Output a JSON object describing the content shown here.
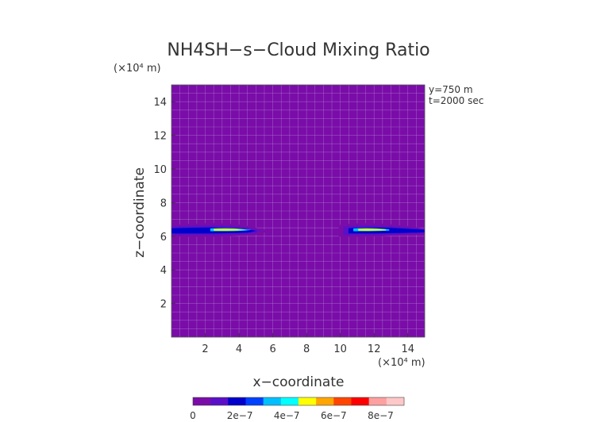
{
  "chart_data": {
    "type": "heatmap",
    "title": "NH4SH−s−Cloud Mixing Ratio",
    "xlabel": "x−coordinate",
    "ylabel": "z−coordinate",
    "x_unit": "(×10⁴ m)",
    "y_unit": "(×10⁴ m)",
    "xlim": [
      0,
      15
    ],
    "ylim": [
      0,
      15
    ],
    "x_ticks": [
      2,
      4,
      6,
      8,
      10,
      12,
      14
    ],
    "y_ticks": [
      2,
      4,
      6,
      8,
      10,
      12,
      14
    ],
    "annotations": [
      "y=750 m",
      "t=2000 sec"
    ],
    "grid": true,
    "background_color": "#7a0ca8",
    "colorbar": {
      "ticks": [
        0,
        2e-07,
        4e-07,
        6e-07,
        8e-07
      ],
      "tick_labels": [
        "0",
        "2e−7",
        "4e−7",
        "6e−7",
        "8e−7"
      ],
      "range": [
        0,
        9e-07
      ],
      "colors": [
        "#7a0ca8",
        "#5a10c8",
        "#0000cc",
        "#0040ff",
        "#00bfff",
        "#00ffff",
        "#ffff00",
        "#ffa500",
        "#ff4500",
        "#ff0000",
        "#ffa0a0",
        "#ffc8c8"
      ]
    },
    "cloud_bands": [
      {
        "x_range": [
          0,
          5.2
        ],
        "z_center": 6.32,
        "peak_x": 3.5,
        "peak_value": 5e-07
      },
      {
        "x_range": [
          9.9,
          15
        ],
        "z_center": 6.32,
        "peak_x": 11.7,
        "peak_value": 5e-07
      }
    ]
  }
}
